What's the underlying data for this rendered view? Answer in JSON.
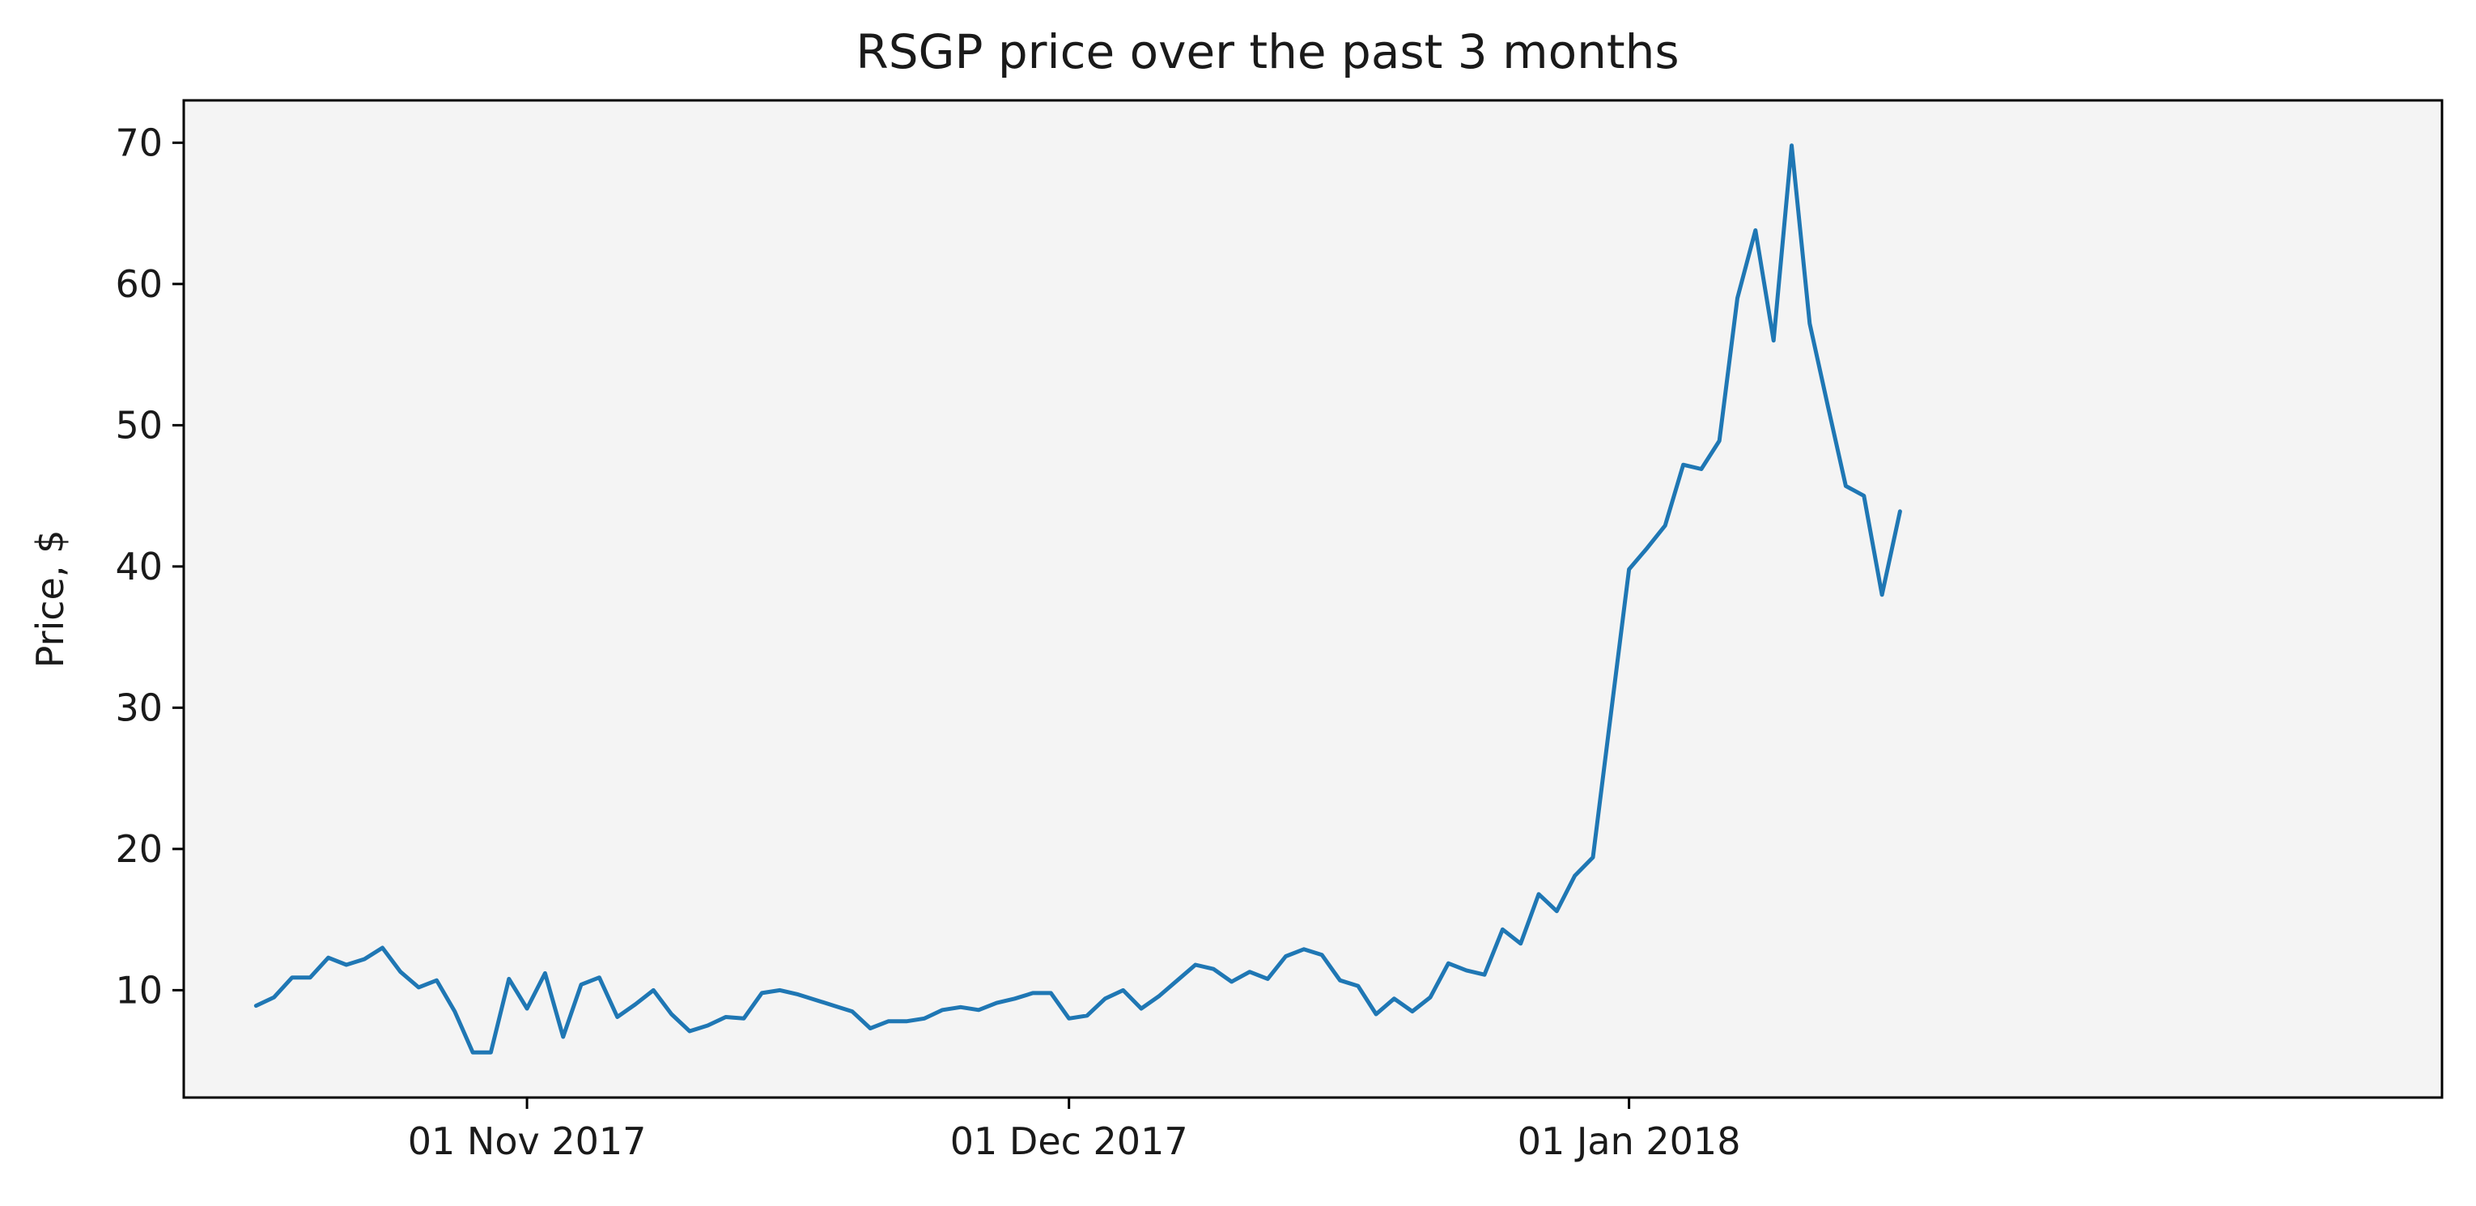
{
  "chart_data": {
    "type": "line",
    "title": "RSGP price over the past 3 months",
    "xlabel": "",
    "ylabel": "Price, $",
    "x_start": "2017-10-17",
    "x_step_days": 1,
    "xlim": [
      "2017-10-13",
      "2018-02-15"
    ],
    "ylim": [
      2.4,
      73.0
    ],
    "yticks": [
      10,
      20,
      30,
      40,
      50,
      60,
      70
    ],
    "xticks": [
      {
        "date": "2017-11-01",
        "label": "01 Nov 2017"
      },
      {
        "date": "2017-12-01",
        "label": "01 Dec 2017"
      },
      {
        "date": "2018-01-01",
        "label": "01 Jan 2018"
      }
    ],
    "grid": false,
    "plot_background": "#f4f4f4",
    "series": [
      {
        "color": "#1f77b4",
        "values": [
          8.9,
          9.5,
          10.9,
          10.9,
          12.3,
          11.8,
          12.2,
          13.0,
          11.3,
          10.2,
          10.7,
          8.5,
          5.6,
          5.6,
          10.8,
          8.7,
          11.2,
          6.7,
          10.4,
          10.9,
          8.1,
          9.0,
          10.0,
          8.3,
          7.1,
          7.5,
          8.1,
          8.0,
          9.8,
          10.0,
          9.7,
          9.3,
          8.9,
          8.5,
          7.3,
          7.8,
          7.8,
          8.0,
          8.6,
          8.8,
          8.6,
          9.1,
          9.4,
          9.8,
          9.8,
          8.0,
          8.2,
          9.4,
          10.0,
          8.7,
          9.6,
          10.7,
          11.8,
          11.5,
          10.6,
          11.3,
          10.8,
          12.4,
          12.9,
          12.5,
          10.7,
          10.3,
          8.3,
          9.4,
          8.5,
          9.5,
          11.9,
          11.4,
          11.1,
          14.3,
          13.3,
          16.8,
          15.6,
          18.1,
          19.4,
          29.6,
          39.8,
          41.3,
          42.9,
          47.2,
          46.9,
          48.9,
          59.0,
          63.8,
          56.0,
          69.8,
          57.2,
          51.4,
          45.7,
          45.0,
          38.0,
          43.9
        ]
      }
    ]
  }
}
